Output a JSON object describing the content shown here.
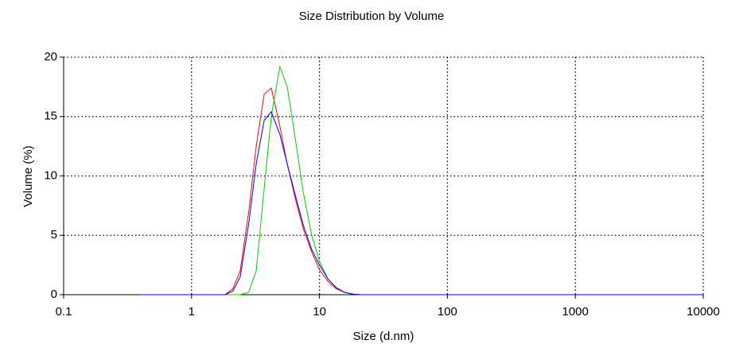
{
  "chart_data": {
    "type": "line",
    "title": "Size Distribution by Volume",
    "x_label": "Size (d.nm)",
    "y_label": "Volume (%)",
    "x": [
      0.4,
      1,
      1.5,
      1.83,
      2.1,
      2.4,
      2.8,
      3.2,
      3.7,
      4.2,
      4.9,
      5.6,
      6.5,
      7.5,
      8.7,
      10,
      11.7,
      13.5,
      15.7,
      18.2,
      21,
      30,
      100,
      1000,
      10000
    ],
    "series": [
      {
        "color": "#ff0000",
        "values": [
          0,
          0,
          0,
          0,
          0.5,
          2,
          7,
          12.5,
          16.9,
          17.4,
          14.2,
          11,
          8,
          5.5,
          3.6,
          2.1,
          1.1,
          0.5,
          0.2,
          0.05,
          0,
          0,
          0,
          0,
          0
        ]
      },
      {
        "color": "#00cc00",
        "values": [
          0,
          0,
          0,
          0,
          0,
          0,
          0.2,
          2,
          9,
          15,
          19.2,
          17.5,
          13,
          8.5,
          5,
          2.8,
          1.3,
          0.6,
          0.2,
          0.05,
          0,
          0,
          0,
          0,
          0
        ]
      },
      {
        "color": "#0000ff",
        "values": [
          0,
          0,
          0,
          0,
          0.3,
          1.5,
          6,
          11,
          14.7,
          15.4,
          13.5,
          11,
          8.3,
          5.8,
          3.8,
          2.5,
          1.3,
          0.6,
          0.2,
          0.05,
          0,
          0,
          0,
          0,
          0
        ]
      }
    ],
    "xlim": [
      0.1,
      10000
    ],
    "xticks": [
      0.1,
      1,
      10,
      100,
      1000,
      10000
    ],
    "x_log": true,
    "ylim": [
      0,
      20
    ],
    "yticks": [
      0,
      5,
      10,
      15,
      20
    ],
    "grid": true
  }
}
